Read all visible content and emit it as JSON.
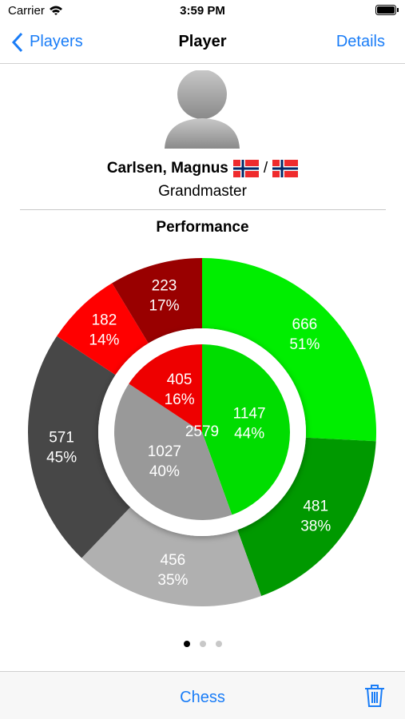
{
  "status_bar": {
    "carrier": "Carrier",
    "time": "3:59 PM"
  },
  "nav": {
    "back": "Players",
    "title": "Player",
    "action": "Details"
  },
  "player": {
    "name": "Carlsen, Magnus",
    "separator": "/",
    "title": "Grandmaster"
  },
  "chart_data": {
    "type": "donut",
    "title": "Performance",
    "total": 2579,
    "inner": {
      "values": [
        1147,
        1027,
        405
      ],
      "labels": [
        "44%",
        "40%",
        "16%"
      ],
      "colors": [
        "#00dd00",
        "#999999",
        "#ee0000"
      ]
    },
    "outer": {
      "values": [
        666,
        481,
        456,
        571,
        182,
        223
      ],
      "labels": [
        "51%",
        "38%",
        "35%",
        "45%",
        "14%",
        "17%"
      ],
      "colors": [
        "#00ee00",
        "#009900",
        "#b0b0b0",
        "#474747",
        "#ff0000",
        "#990000"
      ]
    }
  },
  "toolbar": {
    "title": "Chess"
  }
}
